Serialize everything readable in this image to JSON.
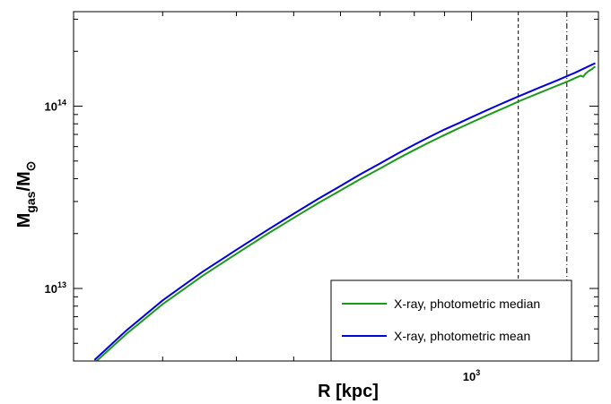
{
  "chart_data": {
    "type": "line",
    "xscale": "log",
    "yscale": "log",
    "xlim": [
      212,
      1640
    ],
    "ylim": [
      4000000000000.0,
      330000000000000.0
    ],
    "xlabel": "R [kpc]",
    "ylabel": {
      "main": "M",
      "sub1": "gas",
      "sep": "/M",
      "sub2": "⊙"
    },
    "x_tick_labels": [
      {
        "value": 1000,
        "base": "10",
        "exp": "3"
      }
    ],
    "y_tick_labels": [
      {
        "value": 10000000000000.0,
        "base": "10",
        "exp": "13"
      },
      {
        "value": 100000000000000.0,
        "base": "10",
        "exp": "14"
      }
    ],
    "grid": false,
    "legend_position": "bottom-right",
    "vlines": [
      {
        "x": 1200,
        "style": "dashed"
      },
      {
        "x": 1450,
        "style": "dash-dot"
      }
    ],
    "series": [
      {
        "name": "X-ray, photometric median",
        "color": "#1a9a1a",
        "x": [
          230,
          260,
          300,
          350,
          400,
          450,
          500,
          550,
          600,
          650,
          700,
          750,
          800,
          850,
          900,
          950,
          1000,
          1050,
          1100,
          1150,
          1200,
          1250,
          1300,
          1350,
          1400,
          1450,
          1500,
          1530,
          1545,
          1560,
          1580,
          1600,
          1620
        ],
        "values": [
          3900000000000.0,
          5600000000000.0,
          8200000000000.0,
          11700000000000.0,
          15500000000000.0,
          19800000000000.0,
          24400000000000.0,
          29400000000000.0,
          34500000000000.0,
          40000000000000.0,
          45500000000000.0,
          51500000000000.0,
          57500000000000.0,
          63500000000000.0,
          69500000000000.0,
          75500000000000.0,
          81500000000000.0,
          87500000000000.0,
          93500000000000.0,
          99500000000000.0,
          106000000000000.0,
          112000000000000.0,
          118000000000000.0,
          124000000000000.0,
          130000000000000.0,
          136000000000000.0,
          143000000000000.0,
          147000000000000.0,
          145000000000000.0,
          151000000000000.0,
          156000000000000.0,
          160000000000000.0,
          165000000000000.0
        ]
      },
      {
        "name": "X-ray, photometric mean",
        "color": "#0000dd",
        "x": [
          230,
          260,
          300,
          350,
          400,
          450,
          500,
          550,
          600,
          650,
          700,
          750,
          800,
          850,
          900,
          950,
          1000,
          1050,
          1100,
          1150,
          1200,
          1250,
          1300,
          1350,
          1400,
          1450,
          1500,
          1550,
          1600,
          1620
        ],
        "values": [
          4050000000000.0,
          5850000000000.0,
          8600000000000.0,
          12300000000000.0,
          16300000000000.0,
          20800000000000.0,
          25700000000000.0,
          31000000000000.0,
          36500000000000.0,
          42500000000000.0,
          48500000000000.0,
          55000000000000.0,
          61500000000000.0,
          68000000000000.0,
          74500000000000.0,
          80500000000000.0,
          87000000000000.0,
          93500000000000.0,
          100000000000000.0,
          106500000000000.0,
          113000000000000.0,
          119500000000000.0,
          126000000000000.0,
          132500000000000.0,
          139000000000000.0,
          146000000000000.0,
          153000000000000.0,
          161000000000000.0,
          169000000000000.0,
          172000000000000.0
        ]
      }
    ]
  }
}
